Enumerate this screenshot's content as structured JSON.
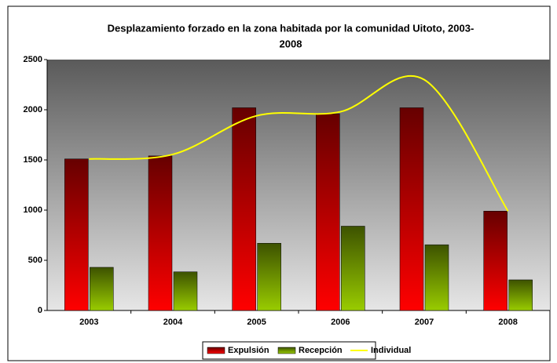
{
  "chart_data": {
    "type": "bar",
    "title": [
      "Desplazamiento forzado en la zona habitada por la comunidad Uitoto, 2003-",
      "2008"
    ],
    "categories": [
      "2003",
      "2004",
      "2005",
      "2006",
      "2007",
      "2008"
    ],
    "series": [
      {
        "name": "Expulsión",
        "color": "#ff0000",
        "type": "bar",
        "values": [
          1510,
          1540,
          2020,
          1960,
          2020,
          990
        ]
      },
      {
        "name": "Recepción",
        "color": "#99cc00",
        "type": "bar",
        "values": [
          430,
          385,
          670,
          840,
          655,
          305
        ]
      },
      {
        "name": "Individual",
        "color": "#ffff00",
        "type": "line",
        "values": [
          1510,
          1555,
          1940,
          1980,
          2300,
          990
        ]
      }
    ],
    "ylim": [
      0,
      2500
    ],
    "yticks": [
      0,
      500,
      1000,
      1500,
      2000,
      2500
    ],
    "legend": "bottom"
  }
}
